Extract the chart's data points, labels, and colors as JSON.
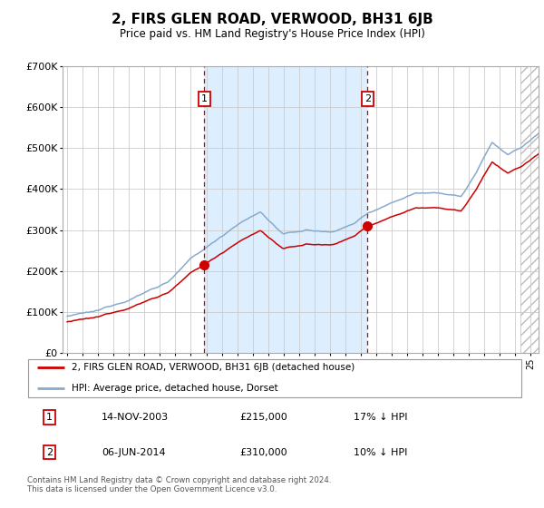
{
  "title": "2, FIRS GLEN ROAD, VERWOOD, BH31 6JB",
  "subtitle": "Price paid vs. HM Land Registry's House Price Index (HPI)",
  "legend_line1": "2, FIRS GLEN ROAD, VERWOOD, BH31 6JB (detached house)",
  "legend_line2": "HPI: Average price, detached house, Dorset",
  "annotation1_label": "1",
  "annotation1_date": "14-NOV-2003",
  "annotation1_price": "£215,000",
  "annotation1_hpi": "17% ↓ HPI",
  "annotation2_label": "2",
  "annotation2_date": "06-JUN-2014",
  "annotation2_price": "£310,000",
  "annotation2_hpi": "10% ↓ HPI",
  "footnote": "Contains HM Land Registry data © Crown copyright and database right 2024.\nThis data is licensed under the Open Government Licence v3.0.",
  "red_line_color": "#cc0000",
  "blue_line_color": "#88aacc",
  "bg_highlight_color": "#ddeeff",
  "vline_color": "#cc0000",
  "grid_color": "#cccccc",
  "ylim": [
    0,
    700000
  ],
  "yticks": [
    0,
    100000,
    200000,
    300000,
    400000,
    500000,
    600000,
    700000
  ],
  "ytick_labels": [
    "£0",
    "£100K",
    "£200K",
    "£300K",
    "£400K",
    "£500K",
    "£600K",
    "£700K"
  ],
  "sale1_x": 2003.88,
  "sale1_y": 215000,
  "sale2_x": 2014.43,
  "sale2_y": 310000,
  "xmin": 1994.7,
  "xmax": 2025.5,
  "hatch_start": 2024.3
}
